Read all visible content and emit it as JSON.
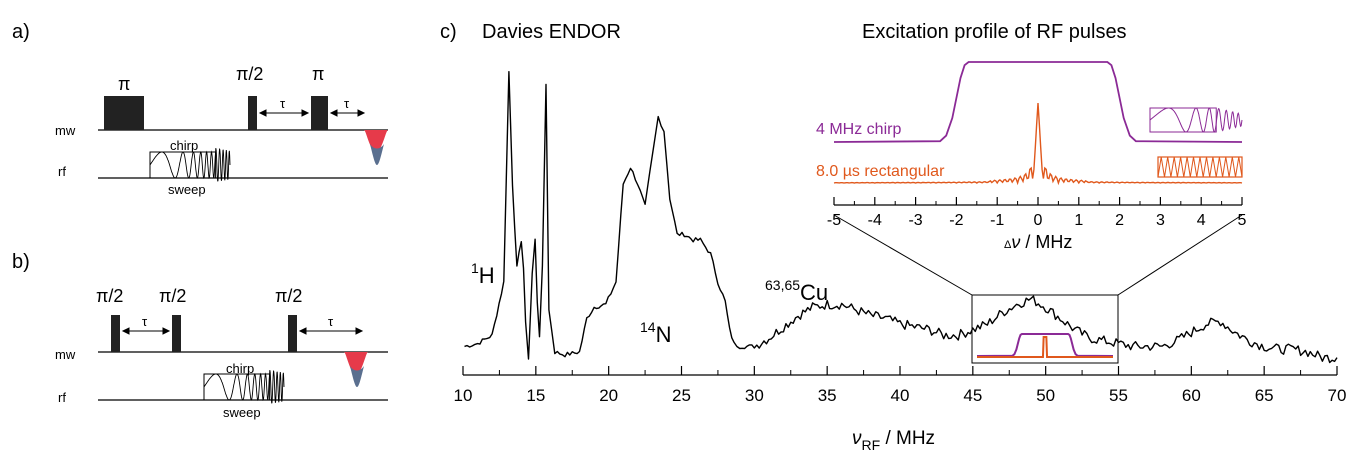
{
  "panel_a": {
    "label": "a)",
    "pulse_labels": [
      "π",
      "π/2",
      "π"
    ],
    "tau_labels": [
      "τ",
      "τ"
    ],
    "channel_mw": "mw",
    "channel_rf": "rf",
    "chirp_label": "chirp",
    "sweep_label": "sweep"
  },
  "panel_b": {
    "label": "b)",
    "pulse_labels": [
      "π/2",
      "π/2",
      "π/2"
    ],
    "tau_labels": [
      "τ",
      "τ"
    ],
    "channel_mw": "mw",
    "channel_rf": "rf",
    "chirp_label": "chirp",
    "sweep_label": "sweep"
  },
  "panel_c": {
    "label": "c)",
    "title": "Davies ENDOR",
    "peak_labels": {
      "h_sup": "1",
      "h": "H",
      "n_sup": "14",
      "n": "N",
      "cu_sup": "63,65",
      "cu": "Cu"
    },
    "xlabel_symbol": "ν",
    "xlabel_sub": "RF",
    "xlabel_unit": " / MHz"
  },
  "inset": {
    "title": "Excitation profile of RF pulses",
    "legend": [
      "4 MHz chirp",
      "8.0 µs rectangular"
    ],
    "xlabel_prefix": "Δ",
    "xlabel_symbol": "ν",
    "xlabel_unit": " / MHz",
    "colors": {
      "chirp": "#8b2a96",
      "rect": "#e0581c"
    }
  },
  "colors": {
    "spectrum": "#000000",
    "echo_top": "#e63a4a",
    "echo_bottom": "#5a6f8f"
  },
  "chart_data": [
    {
      "type": "line",
      "title": "Davies ENDOR",
      "xlabel": "νRF / MHz",
      "ylabel": "",
      "xlim": [
        10,
        70
      ],
      "x_ticks": [
        "10",
        "15",
        "20",
        "25",
        "30",
        "35",
        "40",
        "45",
        "50",
        "55",
        "60",
        "65",
        "70"
      ],
      "series": [
        {
          "x": [
            10.1,
            11.0,
            12.0,
            12.8,
            13.15,
            13.4,
            13.7,
            14.0,
            14.15,
            14.3,
            14.5,
            14.75,
            14.95,
            15.1,
            15.25,
            15.45,
            15.7,
            15.9,
            16.3,
            17.0,
            18.0,
            18.5,
            19.0,
            19.8,
            20.5,
            21.0,
            21.5,
            22.0,
            22.5,
            23.0,
            23.4,
            23.8,
            24.2,
            24.7,
            25.2,
            25.8,
            26.3,
            27.0,
            27.5,
            28.0,
            28.3,
            28.6,
            29.0,
            30.0,
            31.0,
            32.0,
            33.0,
            34.0,
            35.0,
            36.0,
            37.0,
            38.0,
            39.0,
            40.0,
            41.0,
            42.0,
            43.0,
            44.0,
            45.0,
            46.0,
            47.0,
            48.0,
            49.0,
            50.0,
            51.0,
            52.0,
            53.0,
            54.0,
            55.0,
            56.0,
            57.0,
            58.0,
            59.0,
            60.0,
            61.0,
            62.0,
            63.0,
            64.0,
            65.0,
            66.0,
            67.0,
            68.0,
            69.0,
            70.0
          ],
          "y": [
            0.02,
            0.03,
            0.06,
            0.25,
            1.0,
            0.6,
            0.3,
            0.4,
            0.3,
            0.1,
            -0.02,
            0.28,
            0.4,
            0.18,
            0.06,
            0.3,
            0.96,
            0.15,
            0.0,
            -0.01,
            0.0,
            0.12,
            0.16,
            0.17,
            0.25,
            0.6,
            0.66,
            0.6,
            0.52,
            0.7,
            0.84,
            0.79,
            0.55,
            0.42,
            0.42,
            0.4,
            0.4,
            0.35,
            0.25,
            0.18,
            0.08,
            0.03,
            0.02,
            0.02,
            0.05,
            0.09,
            0.13,
            0.16,
            0.17,
            0.17,
            0.15,
            0.13,
            0.12,
            0.1,
            0.09,
            0.08,
            0.06,
            0.06,
            0.08,
            0.1,
            0.14,
            0.17,
            0.19,
            0.16,
            0.12,
            0.08,
            0.05,
            0.04,
            0.03,
            0.02,
            0.02,
            0.02,
            0.04,
            0.07,
            0.1,
            0.11,
            0.07,
            0.04,
            0.02,
            0.01,
            0.01,
            0.0,
            -0.02,
            -0.02
          ]
        }
      ]
    },
    {
      "type": "line",
      "title": "Excitation profile of RF pulses",
      "xlabel": "Δν / MHz",
      "ylabel": "",
      "xlim": [
        -5,
        5
      ],
      "x_ticks": [
        "-5",
        "-4",
        "-3",
        "-2",
        "-1",
        "0",
        "1",
        "2",
        "3",
        "4",
        "5"
      ],
      "series": [
        {
          "name": "4 MHz chirp",
          "x": [
            -5,
            -2.4,
            -2.25,
            -2.1,
            -2.0,
            -1.9,
            -1.8,
            -1.7,
            1.7,
            1.8,
            1.9,
            2.0,
            2.1,
            2.25,
            2.4,
            5
          ],
          "y": [
            0,
            0.01,
            0.08,
            0.3,
            0.55,
            0.8,
            0.96,
            1.0,
            1.0,
            0.96,
            0.8,
            0.55,
            0.3,
            0.08,
            0.01,
            0
          ]
        },
        {
          "name": "8.0 µs rectangular",
          "x": [
            -5,
            -1.0,
            -0.6,
            -0.45,
            -0.3,
            -0.18,
            -0.1,
            -0.05,
            0.0,
            0.05,
            0.1,
            0.18,
            0.3,
            0.45,
            0.6,
            1.0,
            5
          ],
          "y": [
            0,
            0.0,
            0.02,
            0.05,
            0.07,
            0.02,
            0.2,
            0.6,
            1.0,
            0.6,
            0.2,
            0.02,
            0.07,
            0.05,
            0.02,
            0.0,
            0
          ]
        }
      ]
    }
  ]
}
